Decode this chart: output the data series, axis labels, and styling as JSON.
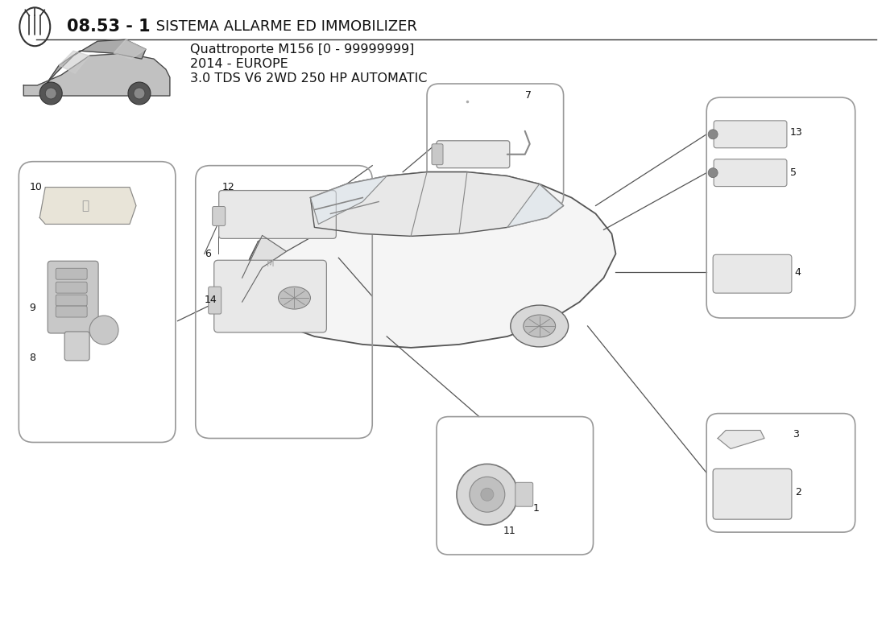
{
  "title_bold": "08.53 - 1",
  "title_normal": " SISTEMA ALLARME ED IMMOBILIZER",
  "subtitle_line1": "Quattroporte M156 [0 - 99999999]",
  "subtitle_line2": "2014 - EUROPE",
  "subtitle_line3": "3.0 TDS V6 2WD 250 HP AUTOMATIC",
  "bg_color": "#ffffff",
  "box_edge_color": "#999999",
  "line_color": "#555555",
  "text_color": "#111111",
  "label_color": "#111111",
  "part_fill": "#e8e8e8",
  "car_fill": "#f5f5f5",
  "car_edge": "#555555"
}
